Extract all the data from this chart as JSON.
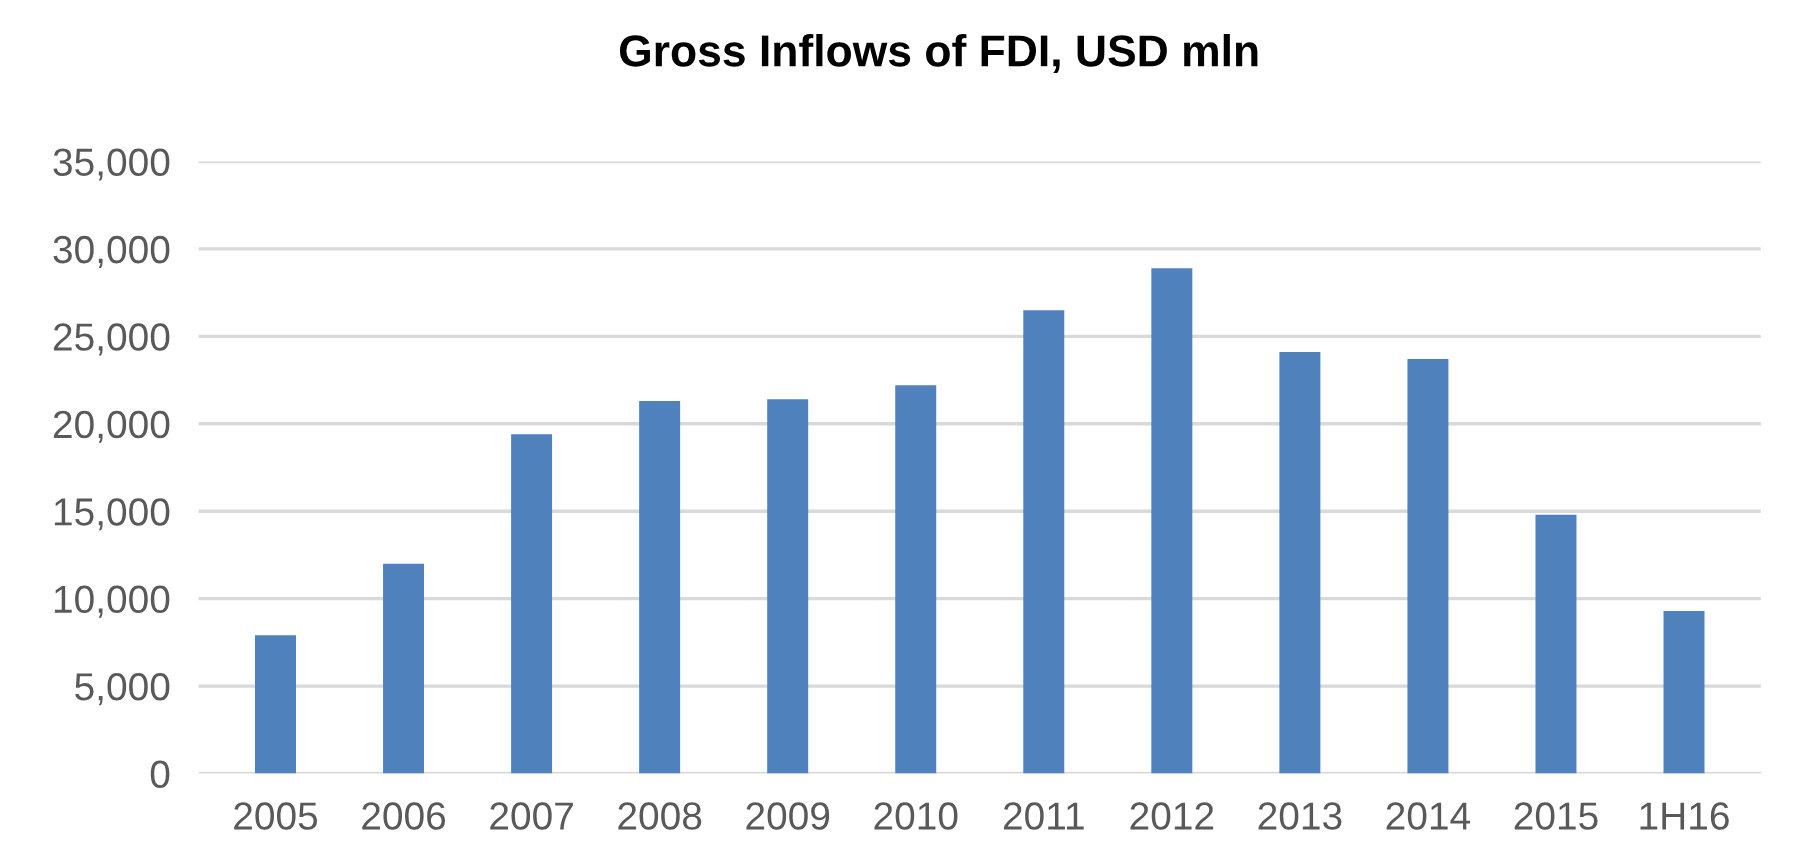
{
  "chart_data": {
    "type": "bar",
    "title": "Gross Inflows of FDI, USD mln",
    "categories": [
      "2005",
      "2006",
      "2007",
      "2008",
      "2009",
      "2010",
      "2011",
      "2012",
      "2013",
      "2014",
      "2015",
      "1H16"
    ],
    "values": [
      7900,
      12000,
      19400,
      21300,
      21400,
      22200,
      26500,
      28900,
      24100,
      23700,
      14800,
      9300
    ],
    "color": "#4f81bd",
    "ylim": [
      0,
      35000
    ],
    "yticks": [
      {
        "value": 0,
        "label": "0"
      },
      {
        "value": 5000,
        "label": "5,000"
      },
      {
        "value": 10000,
        "label": "10,000"
      },
      {
        "value": 15000,
        "label": "15,000"
      },
      {
        "value": 20000,
        "label": "20,000"
      },
      {
        "value": 25000,
        "label": "25,000"
      },
      {
        "value": 30000,
        "label": "30,000"
      },
      {
        "value": 35000,
        "label": "35,000"
      }
    ],
    "grid": "y"
  }
}
